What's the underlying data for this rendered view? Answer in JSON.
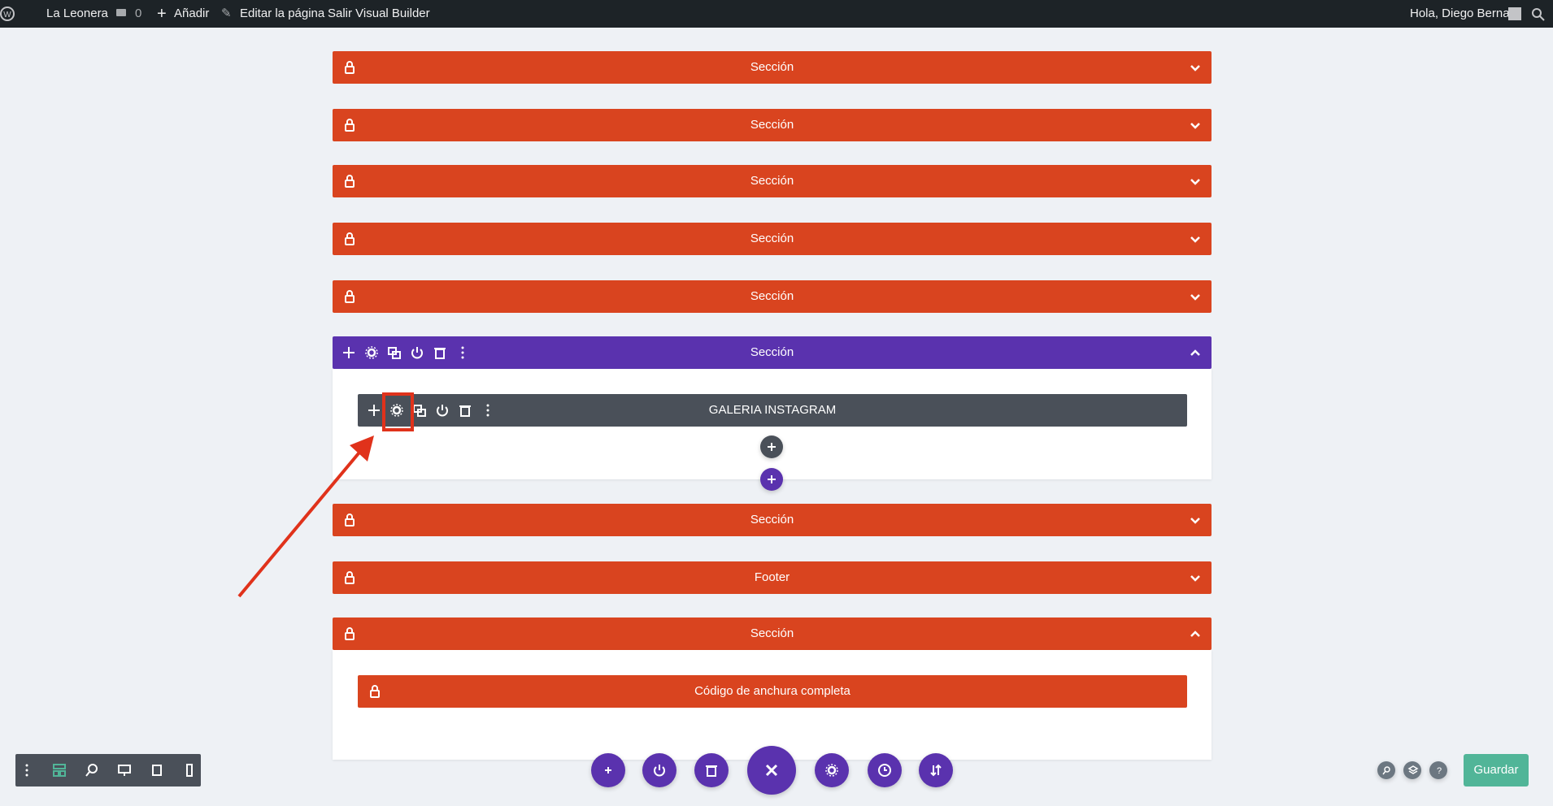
{
  "admin_bar": {
    "site": "La Leonera",
    "comments": "0",
    "add": "Añadir",
    "edit": "Editar la página",
    "exit": "Salir Visual Builder",
    "greeting": "Hola, Diego Bernal"
  },
  "sections": [
    {
      "label": "Sección"
    },
    {
      "label": "Sección"
    },
    {
      "label": "Sección"
    },
    {
      "label": "Sección"
    },
    {
      "label": "Sección"
    },
    {
      "label": "Sección",
      "row": "GALERIA INSTAGRAM"
    },
    {
      "label": "Sección"
    },
    {
      "label": "Footer"
    },
    {
      "label": "Sección",
      "module": "Código de anchura completa"
    }
  ],
  "save": "Guardar"
}
